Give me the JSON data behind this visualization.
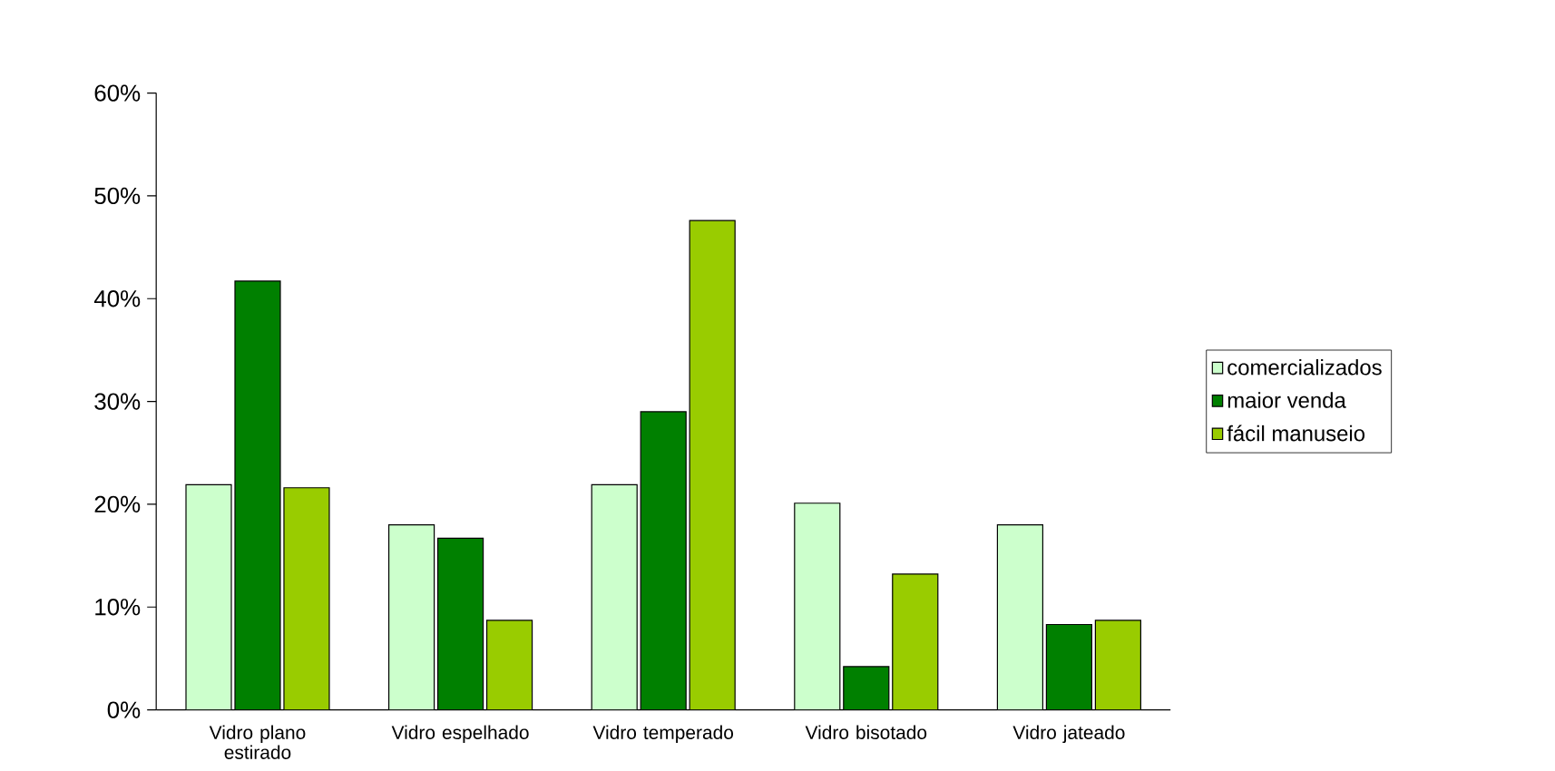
{
  "chart_data": {
    "type": "bar",
    "categories": [
      "Vidro plano estirado",
      "Vidro espelhado",
      "Vidro temperado",
      "Vidro bisotado",
      "Vidro jateado"
    ],
    "series": [
      {
        "name": "comercializados",
        "color": "#ccffcc",
        "values": [
          21.9,
          18.0,
          21.9,
          20.1,
          18.0
        ]
      },
      {
        "name": "maior venda",
        "color": "#008000",
        "values": [
          41.7,
          16.7,
          29.0,
          4.2,
          8.3
        ]
      },
      {
        "name": "fácil manuseio",
        "color": "#99cc00",
        "values": [
          21.6,
          8.7,
          47.6,
          13.2,
          8.7
        ]
      }
    ],
    "ylim": [
      0,
      60
    ],
    "yticks": [
      {
        "value": 0,
        "label": "0%"
      },
      {
        "value": 10,
        "label": "10%"
      },
      {
        "value": 20,
        "label": "20%"
      },
      {
        "value": 30,
        "label": "30%"
      },
      {
        "value": 40,
        "label": "40%"
      },
      {
        "value": 50,
        "label": "50%"
      },
      {
        "value": 60,
        "label": "60%"
      }
    ],
    "legend": "right",
    "grid": false
  }
}
